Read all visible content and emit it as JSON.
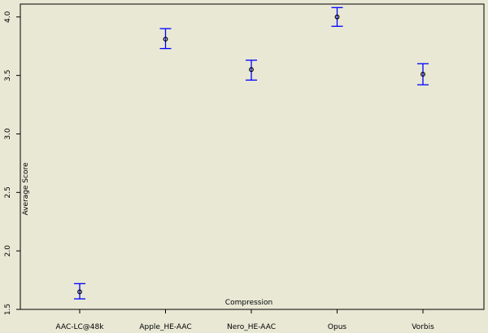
{
  "chart_data": {
    "type": "scatter",
    "error_bars": true,
    "xlabel": "Compression",
    "ylabel": "Average Score",
    "categories": [
      "AAC-LC@48k",
      "Apple_HE-AAC",
      "Nero_HE-AAC",
      "Opus",
      "Vorbis"
    ],
    "values": [
      1.65,
      3.81,
      3.55,
      4.0,
      3.51
    ],
    "err_low": [
      1.59,
      3.73,
      3.46,
      3.92,
      3.42
    ],
    "err_high": [
      1.72,
      3.9,
      3.63,
      4.08,
      3.6
    ],
    "ylim": [
      1.5,
      4.11
    ],
    "yticks": [
      1.5,
      2.0,
      2.5,
      3.0,
      3.5,
      4.0
    ],
    "ytick_labels": [
      "1.5",
      "2.0",
      "2.5",
      "3.0",
      "3.5",
      "4.0"
    ],
    "grid": false,
    "colors": {
      "background": "#e8e8d5",
      "axis": "#000000",
      "error_bar": "#0000ff",
      "point": "#000000"
    }
  }
}
